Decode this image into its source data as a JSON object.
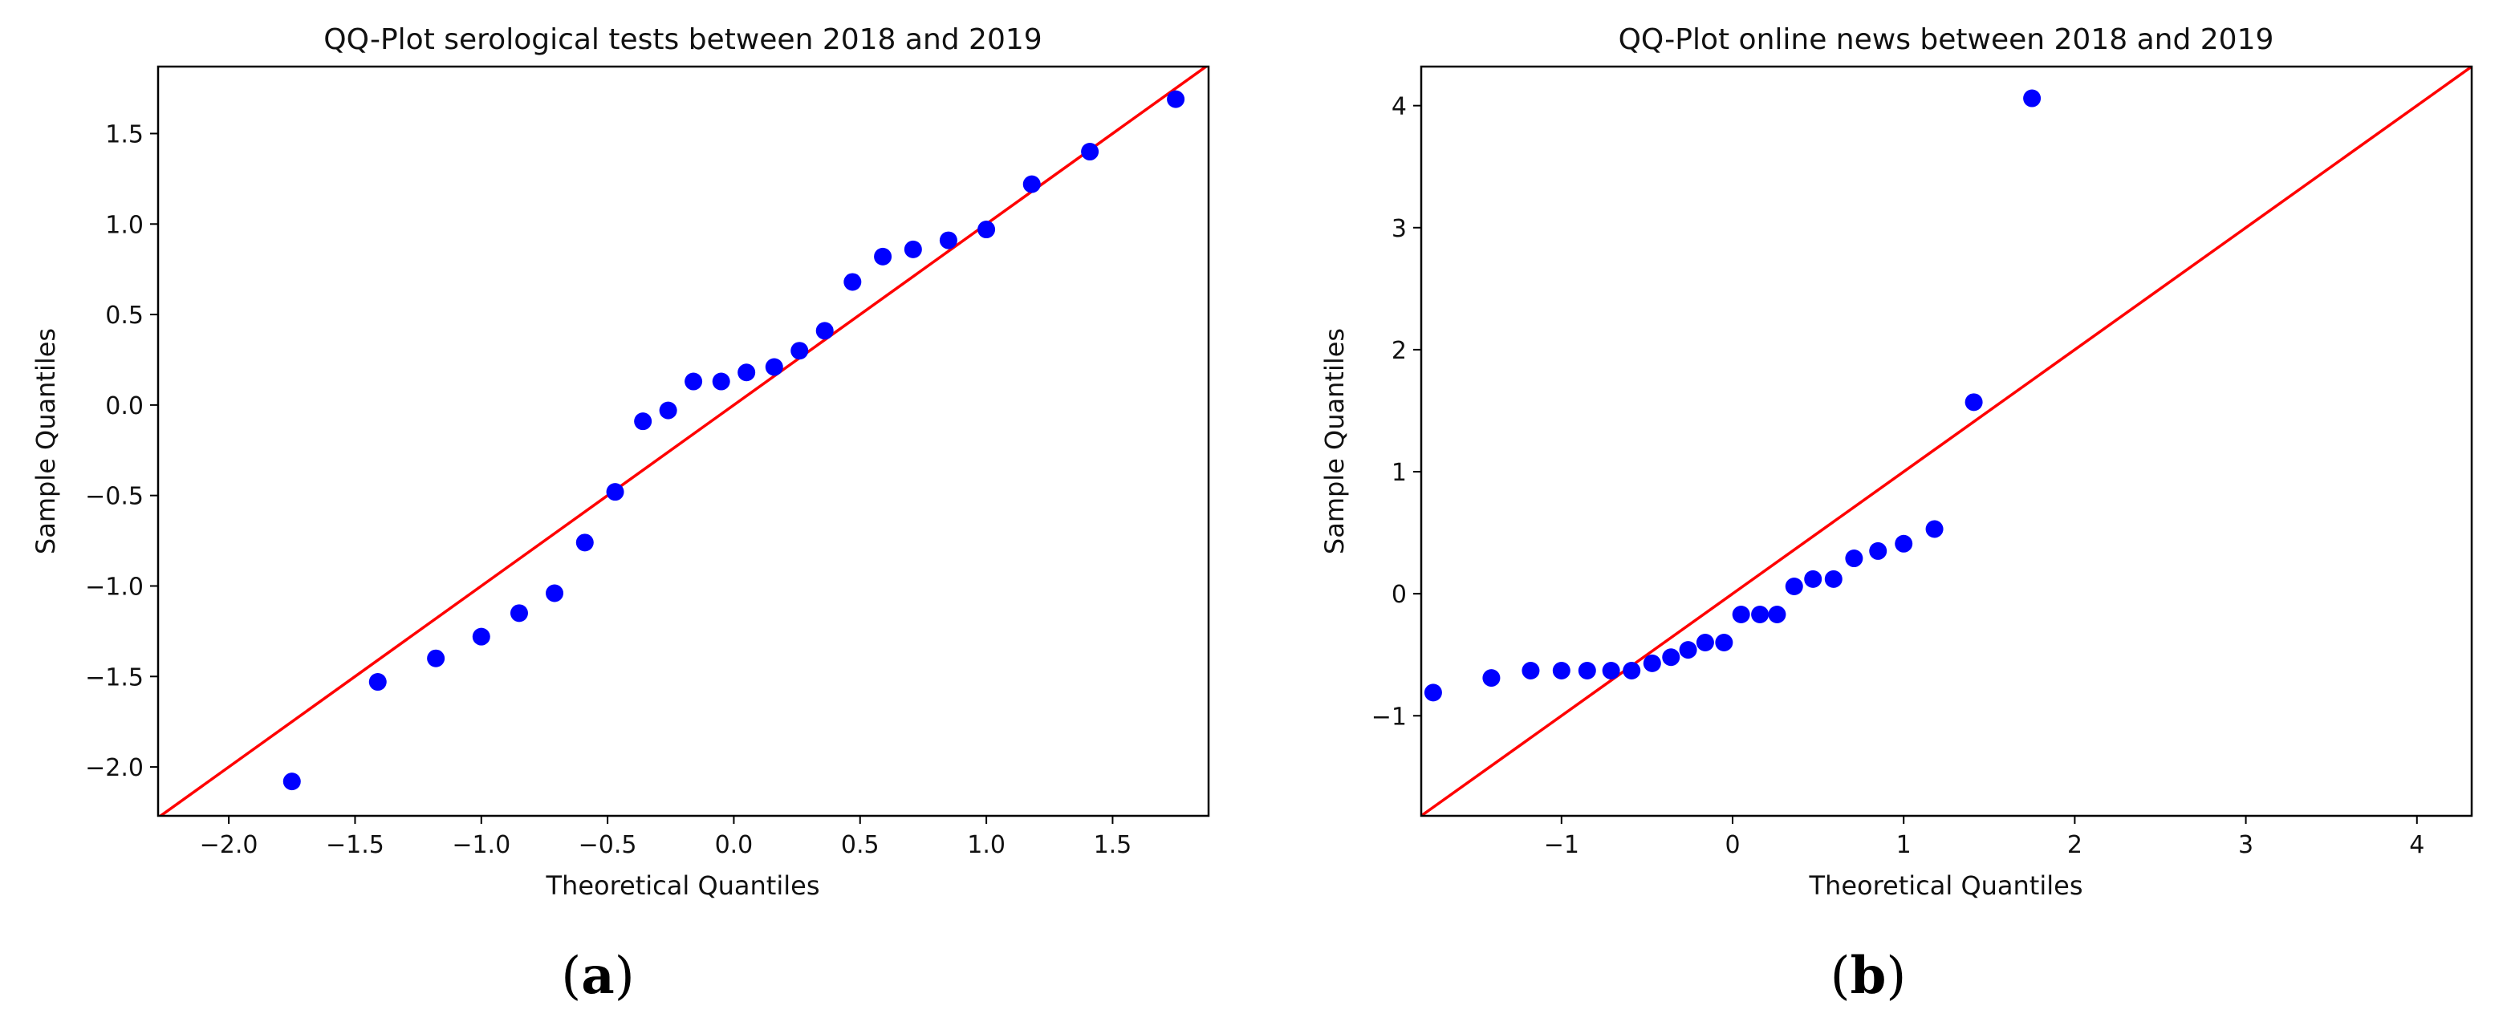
{
  "figure": {
    "panels": [
      {
        "open": "(",
        "letter": "a",
        "close": ")"
      },
      {
        "open": "(",
        "letter": "b",
        "close": ")"
      }
    ]
  },
  "chart_data": [
    {
      "type": "scatter",
      "title": "QQ-Plot serological tests between 2018 and 2019",
      "xlabel": "Theoretical Quantiles",
      "ylabel": "Sample Quantiles",
      "xlim": [
        -2.28,
        1.88
      ],
      "ylim": [
        -2.27,
        1.87
      ],
      "xticks": [
        -2.0,
        -1.5,
        -1.0,
        -0.5,
        0.0,
        0.5,
        1.0,
        1.5
      ],
      "xtick_labels": [
        "−2.0",
        "−1.5",
        "−1.0",
        "−0.5",
        "0.0",
        "0.5",
        "1.0",
        "1.5"
      ],
      "yticks": [
        -2.0,
        -1.5,
        -1.0,
        -0.5,
        0.0,
        0.5,
        1.0,
        1.5
      ],
      "ytick_labels": [
        "−2.0",
        "−1.5",
        "−1.0",
        "−0.5",
        "0.0",
        "0.5",
        "1.0",
        "1.5"
      ],
      "grid": false,
      "marker_color": "#0000ff",
      "line_color": "#ff0000",
      "reference_line": {
        "slope": 1,
        "intercept": 0
      },
      "x": [
        -1.75,
        -1.41,
        -1.18,
        -1.0,
        -0.85,
        -0.71,
        -0.59,
        -0.47,
        -0.36,
        -0.26,
        -0.16,
        -0.05,
        0.05,
        0.16,
        0.26,
        0.36,
        0.47,
        0.59,
        0.71,
        0.85,
        1.0,
        1.18,
        1.41,
        1.75
      ],
      "y": [
        -2.08,
        -1.53,
        -1.4,
        -1.28,
        -1.15,
        -1.04,
        -0.76,
        -0.48,
        -0.09,
        -0.03,
        0.13,
        0.13,
        0.18,
        0.21,
        0.3,
        0.41,
        0.68,
        0.82,
        0.86,
        0.91,
        0.97,
        1.22,
        1.4,
        1.69
      ]
    },
    {
      "type": "scatter",
      "title": "QQ-Plot online news between 2018 and 2019",
      "xlabel": "Theoretical Quantiles",
      "ylabel": "Sample Quantiles",
      "xlim": [
        -1.82,
        4.32
      ],
      "ylim": [
        -1.82,
        4.32
      ],
      "xticks": [
        -1,
        0,
        1,
        2,
        3,
        4
      ],
      "xtick_labels": [
        "−1",
        "0",
        "1",
        "2",
        "3",
        "4"
      ],
      "yticks": [
        -1,
        0,
        1,
        2,
        3,
        4
      ],
      "ytick_labels": [
        "−1",
        "0",
        "1",
        "2",
        "3",
        "4"
      ],
      "grid": false,
      "marker_color": "#0000ff",
      "line_color": "#ff0000",
      "reference_line": {
        "slope": 1,
        "intercept": 0
      },
      "x": [
        -1.75,
        -1.41,
        -1.18,
        -1.0,
        -0.85,
        -0.71,
        -0.59,
        -0.47,
        -0.36,
        -0.26,
        -0.16,
        -0.05,
        0.05,
        0.16,
        0.26,
        0.36,
        0.47,
        0.59,
        0.71,
        0.85,
        1.0,
        1.18,
        1.41,
        1.75
      ],
      "y": [
        -0.81,
        -0.69,
        -0.63,
        -0.63,
        -0.63,
        -0.63,
        -0.63,
        -0.57,
        -0.52,
        -0.46,
        -0.4,
        -0.4,
        -0.17,
        -0.17,
        -0.17,
        0.06,
        0.12,
        0.12,
        0.29,
        0.35,
        0.41,
        0.53,
        1.57,
        4.06
      ]
    }
  ]
}
